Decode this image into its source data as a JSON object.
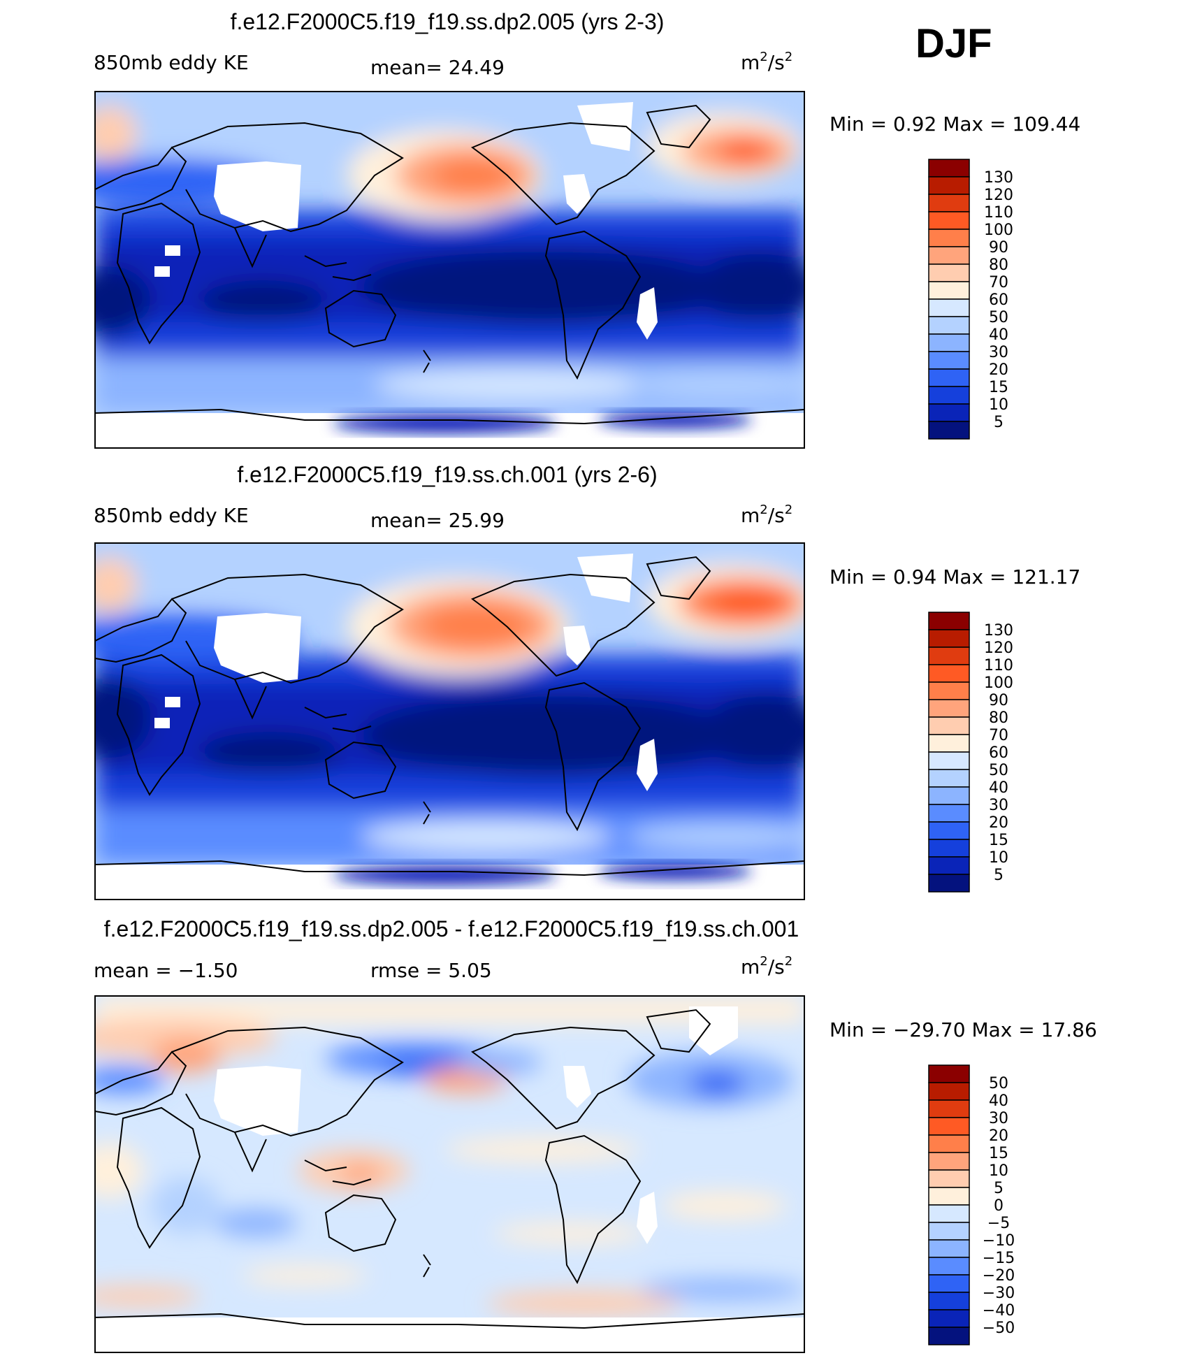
{
  "season": "DJF",
  "panels": [
    {
      "title": "f.e12.F2000C5.f19_f19.ss.dp2.005 (yrs 2-3)",
      "left_label": "850mb  eddy KE",
      "mid_label": "mean=   24.49",
      "units_base": "m",
      "units_sup1": "2",
      "units_mid": "/s",
      "units_sup2": "2",
      "minmax": "Min  =     0.92  Max  =  109.44"
    },
    {
      "title": "f.e12.F2000C5.f19_f19.ss.ch.001 (yrs 2-6)",
      "left_label": "850mb  eddy KE",
      "mid_label": "mean=   25.99",
      "units_base": "m",
      "units_sup1": "2",
      "units_mid": "/s",
      "units_sup2": "2",
      "minmax": "Min  =     0.94  Max  =  121.17"
    },
    {
      "title": "f.e12.F2000C5.f19_f19.ss.dp2.005 - f.e12.F2000C5.f19_f19.ss.ch.001",
      "left_label": "mean  =    −1.50",
      "mid_label": "rmse  =     5.05",
      "units_base": "m",
      "units_sup1": "2",
      "units_mid": "/s",
      "units_sup2": "2",
      "minmax": "Min  =  −29.70  Max  =    17.86"
    }
  ],
  "chart_data": [
    {
      "type": "heatmap",
      "title": "f.e12.F2000C5.f19_f19.ss.dp2.005 (yrs 2-3)",
      "variable": "850mb eddy KE",
      "units": "m2/s2",
      "mean": 24.49,
      "min": 0.92,
      "max": 109.44,
      "colorbar_levels": [
        "130",
        "120",
        "110",
        "100",
        "90",
        "80",
        "70",
        "60",
        "50",
        "40",
        "30",
        "20",
        "15",
        "10",
        "5"
      ],
      "colorbar_colors": [
        "#8b0000",
        "#b81c00",
        "#e03c10",
        "#ff5a24",
        "#ff7f4a",
        "#ffa47c",
        "#ffcdb0",
        "#fff0dc",
        "#d6e8ff",
        "#b4d2ff",
        "#8cb4ff",
        "#5a8cff",
        "#2f63f5",
        "#1540dc",
        "#0a24b8",
        "#04127e"
      ],
      "features": [
        "North Pacific storm track max",
        "North Atlantic storm track max",
        "Southern Ocean band",
        "low values in tropics"
      ]
    },
    {
      "type": "heatmap",
      "title": "f.e12.F2000C5.f19_f19.ss.ch.001 (yrs 2-6)",
      "variable": "850mb eddy KE",
      "units": "m2/s2",
      "mean": 25.99,
      "min": 0.94,
      "max": 121.17,
      "colorbar_levels": [
        "130",
        "120",
        "110",
        "100",
        "90",
        "80",
        "70",
        "60",
        "50",
        "40",
        "30",
        "20",
        "15",
        "10",
        "5"
      ],
      "colorbar_colors": [
        "#8b0000",
        "#b81c00",
        "#e03c10",
        "#ff5a24",
        "#ff7f4a",
        "#ffa47c",
        "#ffcdb0",
        "#fff0dc",
        "#d6e8ff",
        "#b4d2ff",
        "#8cb4ff",
        "#5a8cff",
        "#2f63f5",
        "#1540dc",
        "#0a24b8",
        "#04127e"
      ],
      "features": [
        "North Pacific storm track max",
        "North Atlantic storm track max",
        "Southern Ocean band",
        "low values in tropics"
      ]
    },
    {
      "type": "heatmap",
      "title": "f.e12.F2000C5.f19_f19.ss.dp2.005 - f.e12.F2000C5.f19_f19.ss.ch.001",
      "variable": "difference",
      "units": "m2/s2",
      "mean": -1.5,
      "rmse": 5.05,
      "min": -29.7,
      "max": 17.86,
      "colorbar_levels": [
        "50",
        "40",
        "30",
        "20",
        "15",
        "10",
        "5",
        "0",
        "−5",
        "−10",
        "−15",
        "−20",
        "−30",
        "−40",
        "−50"
      ],
      "colorbar_colors": [
        "#8b0000",
        "#b81c00",
        "#e03c10",
        "#ff5a24",
        "#ff7f4a",
        "#ffa47c",
        "#ffcdb0",
        "#fff0dc",
        "#d6e8ff",
        "#b4d2ff",
        "#8cb4ff",
        "#5a8cff",
        "#2f63f5",
        "#1540dc",
        "#0a24b8",
        "#04127e"
      ],
      "features": [
        "mostly near zero",
        "negative patches North Pacific and North Atlantic",
        "positive patches Eurasia"
      ]
    }
  ]
}
